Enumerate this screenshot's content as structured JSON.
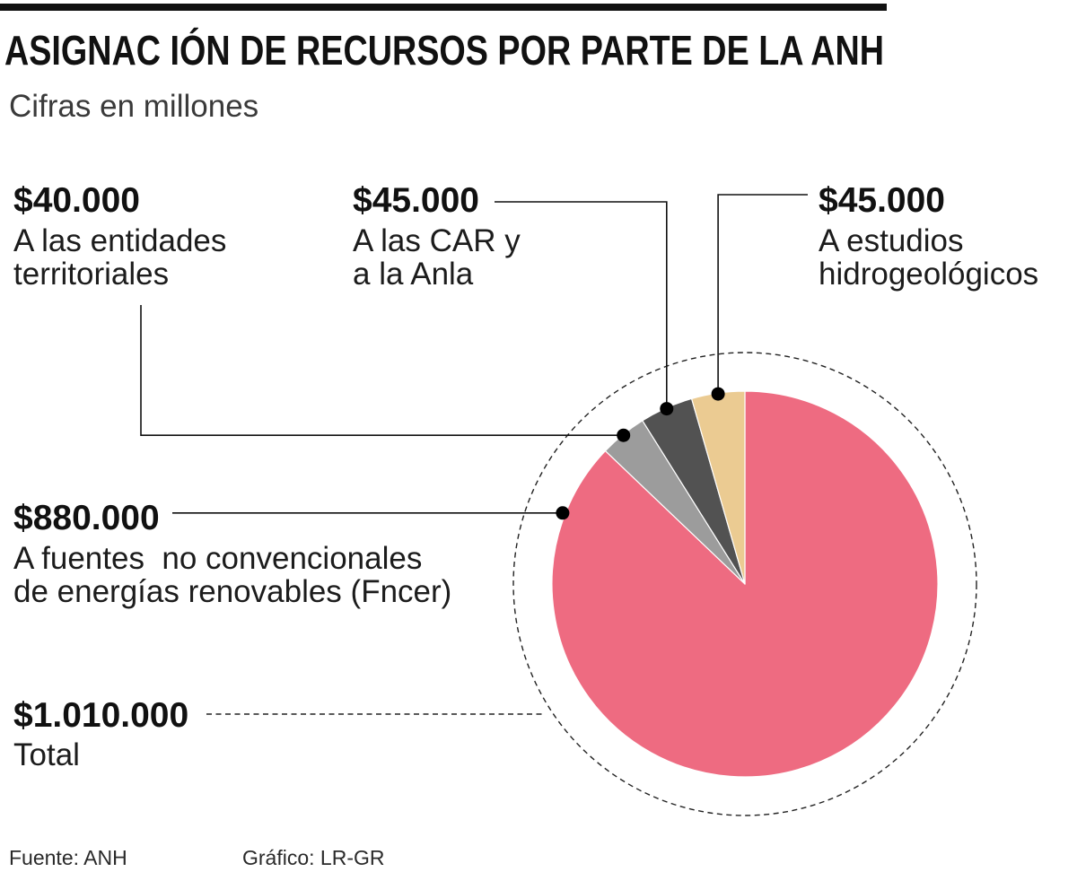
{
  "chart_data": {
    "type": "pie",
    "title": "ASIGNAC IÓN DE RECURSOS POR PARTE DE LA ANH",
    "subtitle": "Cifras en millones",
    "slices": [
      {
        "value": 880000,
        "value_label": "$880.000",
        "label_lines": [
          "A fuentes  no convencionales",
          "de energías renovables (Fncer)"
        ],
        "color": "#EE6B81"
      },
      {
        "value": 40000,
        "value_label": "$40.000",
        "label_lines": [
          "A las entidades",
          "territoriales"
        ],
        "color": "#9C9C9C"
      },
      {
        "value": 45000,
        "value_label": "$45.000",
        "label_lines": [
          "A las CAR y",
          "a la Anla"
        ],
        "color": "#525252"
      },
      {
        "value": 45000,
        "value_label": "$45.000",
        "label_lines": [
          "A estudios",
          "hidrogeológicos"
        ],
        "color": "#EBCB92"
      }
    ],
    "total": {
      "value": 1010000,
      "value_label": "$1.010.000",
      "label": "Total"
    }
  },
  "footer": {
    "source": "Fuente: ANH",
    "credit": "Gráfico: LR-GR"
  }
}
